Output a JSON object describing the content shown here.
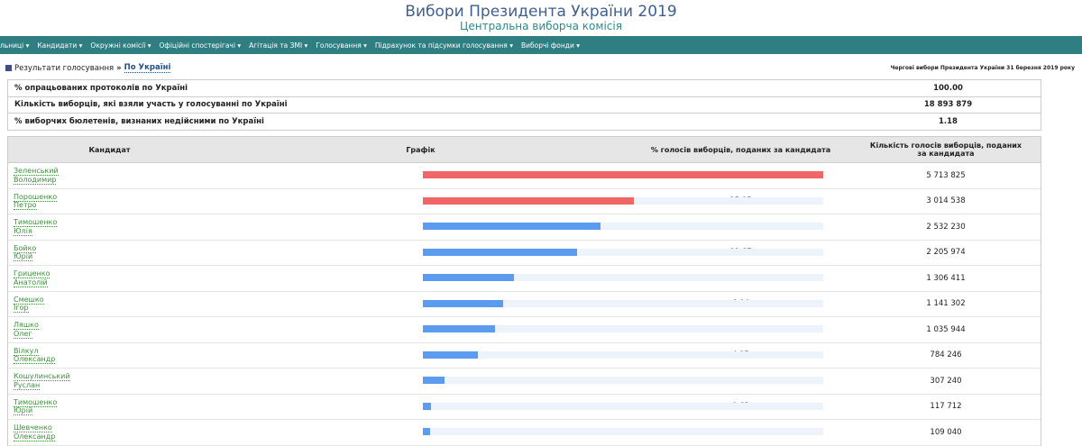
{
  "header": {
    "title": "Вибори Президента України 2019",
    "subtitle": "Центральна виборча комісія"
  },
  "nav": [
    "льниці",
    "Кандидати",
    "Окружні комісії",
    "Офіційні спостерігачі",
    "Агітація та ЗМІ",
    "Голосування",
    "Підрахунок та підсумки голосування",
    "Виборчі фонди"
  ],
  "breadcrumb": {
    "section": "Результати голосування",
    "separator": "»",
    "current": "По Україні",
    "election": "Чергові вибори Президента України 31 березня 2019 року"
  },
  "summary": [
    [
      "% опрацьованих протоколів по Україні",
      "100.00"
    ],
    [
      "Кількість виборців, які взяли участь у голосуванні по Україні",
      "18 893 879"
    ],
    [
      "% виборчих бюлетенів, визнаних недійсними по Україні",
      "1.18"
    ]
  ],
  "table": {
    "columns": [
      "Кандидат",
      "Графік",
      "% голосів виборців, поданих за кандидата",
      "Кількість голосів виборців, поданих за кандидата"
    ],
    "rows": [
      {
        "surname": "Зеленський",
        "first_name": "Володимир",
        "percent": "30.24",
        "votes": "5 713 825",
        "color": "#f06666"
      },
      {
        "surname": "Порошенко",
        "first_name": "Петро",
        "percent": "15.95",
        "votes": "3 014 538",
        "color": "#f06666"
      },
      {
        "surname": "Тимошенко",
        "first_name": "Юлія",
        "percent": "13.40",
        "votes": "2 532 230",
        "color": "#5b9cf0"
      },
      {
        "surname": "Бойко",
        "first_name": "Юрій",
        "percent": "11.67",
        "votes": "2 205 974",
        "color": "#5b9cf0"
      },
      {
        "surname": "Гриценко",
        "first_name": "Анатолій",
        "percent": "6.91",
        "votes": "1 306 411",
        "color": "#5b9cf0"
      },
      {
        "surname": "Смешко",
        "first_name": "Ігор",
        "percent": "6.04",
        "votes": "1 141 302",
        "color": "#5b9cf0"
      },
      {
        "surname": "Ляшко",
        "first_name": "Олег",
        "percent": "5.48",
        "votes": "1 035 944",
        "color": "#5b9cf0"
      },
      {
        "surname": "Вілкул",
        "first_name": "Олександр",
        "percent": "4.15",
        "votes": "784 246",
        "color": "#5b9cf0"
      },
      {
        "surname": "Кошулинський",
        "first_name": "Руслан",
        "percent": "1.62",
        "votes": "307 240",
        "color": "#5b9cf0"
      },
      {
        "surname": "Тимошенко",
        "first_name": "Юрій",
        "percent": "0.62",
        "votes": "117 712",
        "color": "#5b9cf0"
      },
      {
        "surname": "Шевченко",
        "first_name": "Олександр",
        "percent": "0.57",
        "votes": "109 040",
        "color": "#5b9cf0"
      }
    ]
  }
}
